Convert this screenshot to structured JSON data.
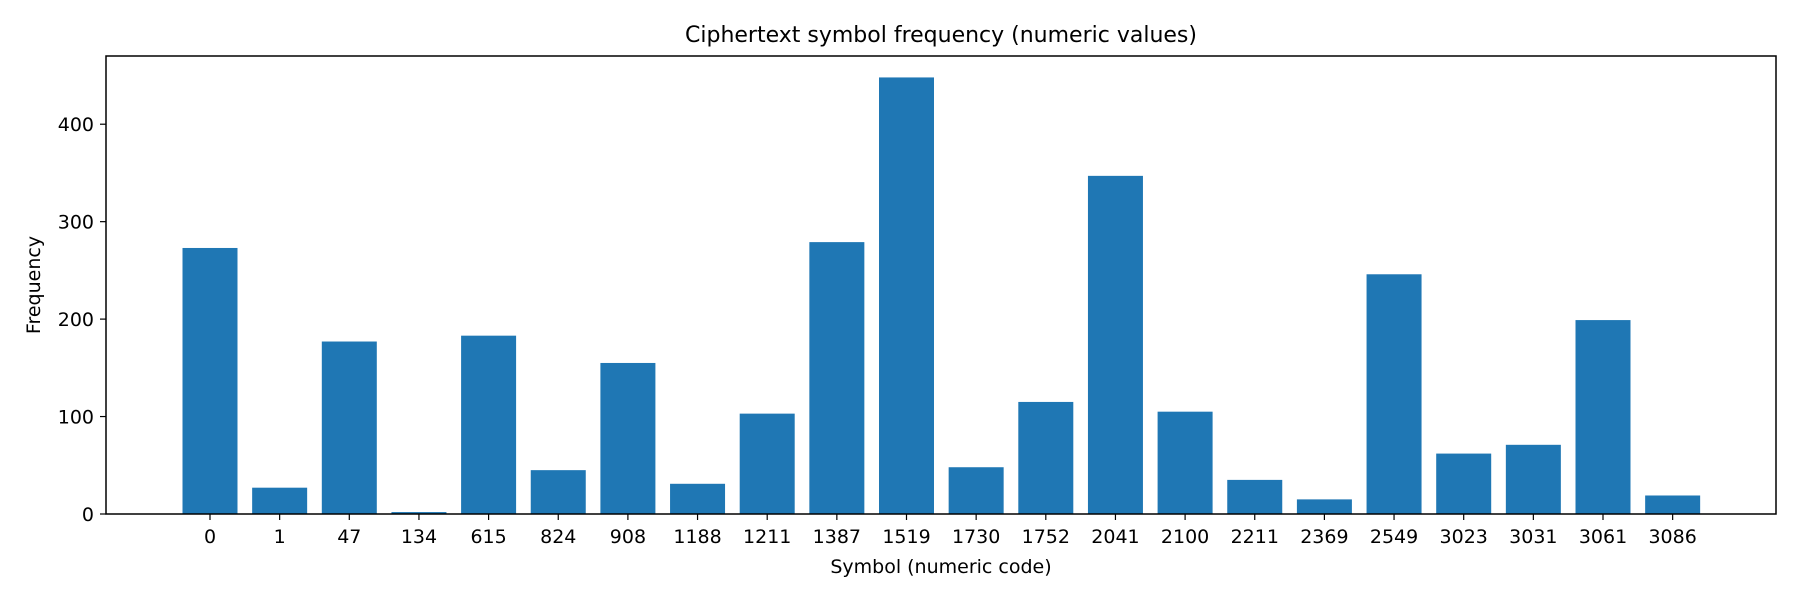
{
  "chart_data": {
    "type": "bar",
    "title": "Ciphertext symbol frequency (numeric values)",
    "xlabel": "Symbol (numeric code)",
    "ylabel": "Frequency",
    "categories": [
      "0",
      "1",
      "47",
      "134",
      "615",
      "824",
      "908",
      "1188",
      "1211",
      "1387",
      "1519",
      "1730",
      "1752",
      "2041",
      "2100",
      "2211",
      "2369",
      "2549",
      "3023",
      "3031",
      "3061",
      "3086"
    ],
    "values": [
      273,
      27,
      177,
      2,
      183,
      45,
      155,
      31,
      103,
      279,
      448,
      48,
      115,
      347,
      105,
      35,
      15,
      246,
      62,
      71,
      199,
      19
    ],
    "ylim": [
      0,
      470
    ],
    "yticks": [
      0,
      100,
      200,
      300,
      400
    ],
    "grid": false,
    "legend": "none",
    "colors": {
      "bar": "#1f77b4",
      "axis": "#000000",
      "background": "#ffffff"
    }
  }
}
